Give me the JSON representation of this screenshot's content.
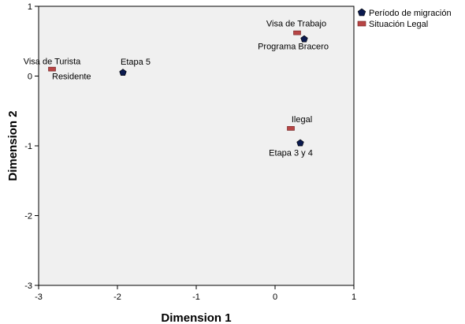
{
  "chart_data": {
    "type": "scatter",
    "xlabel": "Dimension 1",
    "ylabel": "Dimension 2",
    "xlim": [
      -3,
      1
    ],
    "ylim": [
      -3,
      1
    ],
    "xticks": [
      "-3",
      "-2",
      "-1",
      "0",
      "1"
    ],
    "yticks": [
      "1",
      "0",
      "-1",
      "-2",
      "-3"
    ],
    "grid": false,
    "legend_position": "top-right",
    "plot_background": "#f0f0f0",
    "series": [
      {
        "name": "Período de migración",
        "marker": "pentagon",
        "color": "#0b1a4f",
        "points": [
          {
            "label": "Etapa 5",
            "x": -1.93,
            "y": 0.05
          },
          {
            "label": "Programa Bracero",
            "x": 0.37,
            "y": 0.53
          },
          {
            "label": "Etapa 3 y 4",
            "x": 0.32,
            "y": -0.96
          }
        ]
      },
      {
        "name": "Situación Legal",
        "marker": "rect",
        "color": "#b84545",
        "points": [
          {
            "label": "Visa de Turista",
            "x": -2.83,
            "y": 0.1
          },
          {
            "label": "Residente",
            "x": -2.83,
            "y": 0.1
          },
          {
            "label": "Visa de Trabajo",
            "x": 0.28,
            "y": 0.62
          },
          {
            "label": "Ilegal",
            "x": 0.2,
            "y": -0.75
          }
        ]
      }
    ]
  }
}
